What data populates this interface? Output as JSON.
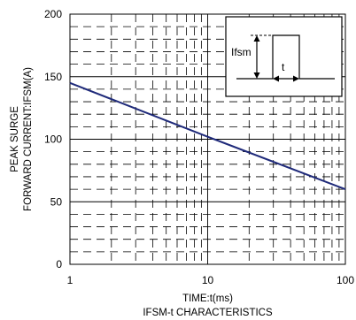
{
  "chart_data": {
    "type": "line",
    "title": "IFSM-t CHARACTERISTICS",
    "xlabel": "TIME:t(ms)",
    "ylabel_lines": [
      "PEAK SURGE",
      "FORWARD CURRENT:IFSM(A)"
    ],
    "x_scale": "log",
    "xlim": [
      1,
      100
    ],
    "ylim": [
      0,
      200
    ],
    "x_ticks": [
      1,
      10,
      100
    ],
    "x_tick_labels": [
      "1",
      "10",
      "100"
    ],
    "y_ticks": [
      0,
      50,
      100,
      150,
      200
    ],
    "y_tick_labels": [
      "0",
      "50",
      "100",
      "150",
      "200"
    ],
    "grid": true,
    "series": [
      {
        "x": [
          1,
          10,
          100
        ],
        "y": [
          145,
          102,
          60
        ]
      }
    ],
    "line_color": "#1f2a7a",
    "inset": {
      "position": "top-right",
      "labels": {
        "ifsm": "Ifsm",
        "t": "t"
      }
    }
  }
}
